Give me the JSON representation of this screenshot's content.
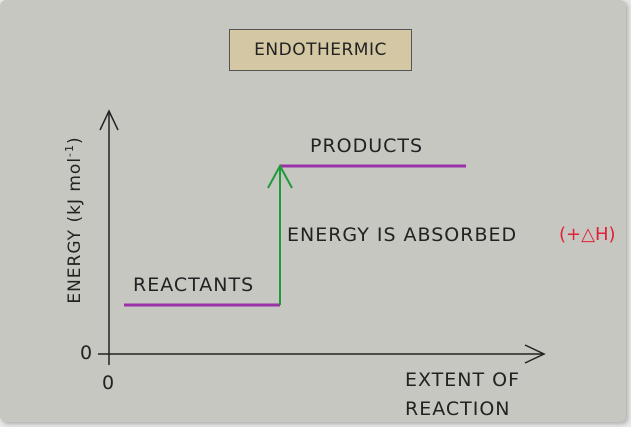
{
  "title": "ENDOTHERMIC",
  "y_axis_label": "ENERGY (kJ mol",
  "y_axis_label_sup": "-1",
  "y_axis_label_end": ")",
  "x_axis_label_line1": "EXTENT OF",
  "x_axis_label_line2": "REACTION",
  "y_origin": "0",
  "x_origin": "0",
  "reactants_label": "REACTANTS",
  "products_label": "PRODUCTS",
  "arrow_label": "ENERGY IS ABSORBED",
  "delta_h_label": "(+△H)",
  "colors": {
    "level_lines": "#9b30a8",
    "arrow": "#1f9a3a",
    "delta_h": "#e0213a",
    "title_box": "#d4c8a4"
  }
}
